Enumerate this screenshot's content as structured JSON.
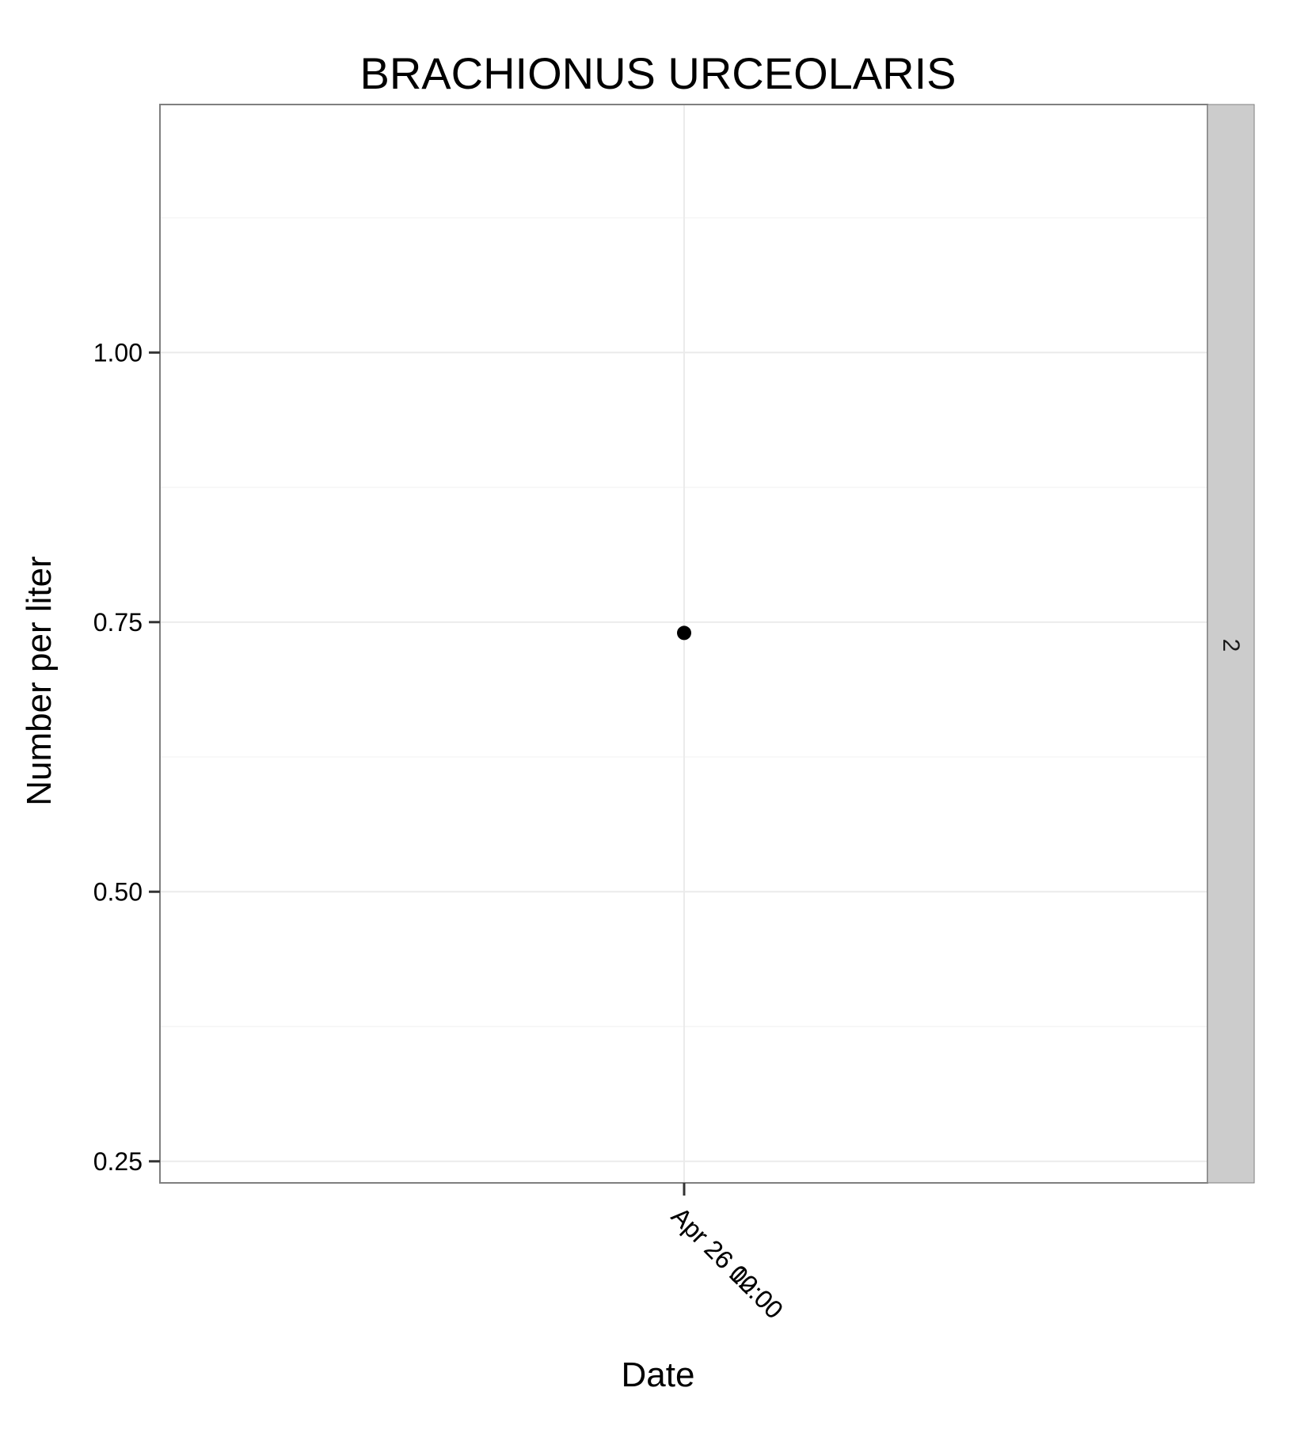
{
  "chart_data": {
    "type": "scatter",
    "title": "BRACHIONUS URCEOLARIS",
    "xlabel": "Date",
    "ylabel": "Number per liter",
    "x_ticks": [
      {
        "overlapping_labels": [
          "Apr 26 00:00",
          "Apr 26 12:00"
        ]
      }
    ],
    "y_ticks": [
      0.25,
      0.5,
      0.75,
      1.0
    ],
    "y_tick_labels": [
      "0.25",
      "0.50",
      "0.75",
      "1.00"
    ],
    "ylim": [
      0.23,
      1.23
    ],
    "grid": true,
    "facet_label": "2",
    "points": [
      {
        "x": "Apr 26",
        "y": 0.74
      }
    ],
    "colors": {
      "point": "#000000",
      "strip": "#cccccc",
      "grid": "#ebebeb",
      "border": "#7f7f7f"
    }
  }
}
